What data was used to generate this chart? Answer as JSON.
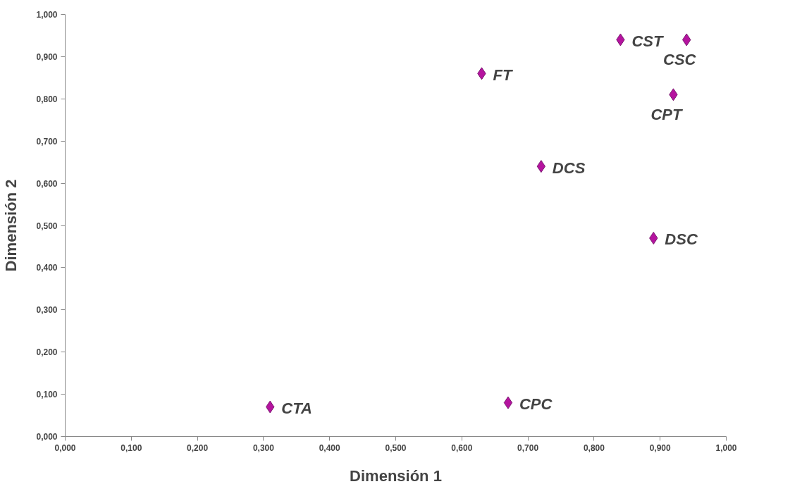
{
  "chart_data": {
    "type": "scatter",
    "xlabel": "Dimensión 1",
    "ylabel": "Dimensión 2",
    "x": [
      0.31,
      0.67,
      0.63,
      0.72,
      0.84,
      0.94,
      0.92,
      0.89
    ],
    "series": [
      {
        "color": "#b5139f",
        "values": [
          0.07,
          0.08,
          0.86,
          0.64,
          0.94,
          0.94,
          0.81,
          0.47
        ]
      }
    ],
    "marker": "diamond",
    "grid": false,
    "xlim": [
      0,
      1
    ],
    "ylim": [
      0,
      1
    ],
    "xticks": [
      {
        "value": 0,
        "label": "0,000"
      },
      {
        "value": 0.1,
        "label": "0,100"
      },
      {
        "value": 0.2,
        "label": "0,200"
      },
      {
        "value": 0.3,
        "label": "0,300"
      },
      {
        "value": 0.4,
        "label": "0,400"
      },
      {
        "value": 0.5,
        "label": "0,500"
      },
      {
        "value": 0.6,
        "label": "0,600"
      },
      {
        "value": 0.7,
        "label": "0,700"
      },
      {
        "value": 0.8,
        "label": "0,800"
      },
      {
        "value": 0.9,
        "label": "0,900"
      },
      {
        "value": 1,
        "label": "1,000"
      }
    ],
    "yticks": [
      {
        "value": 0,
        "label": "0,000"
      },
      {
        "value": 0.1,
        "label": "0,100"
      },
      {
        "value": 0.2,
        "label": "0,200"
      },
      {
        "value": 0.3,
        "label": "0,300"
      },
      {
        "value": 0.4,
        "label": "0,400"
      },
      {
        "value": 0.5,
        "label": "0,500"
      },
      {
        "value": 0.6,
        "label": "0,600"
      },
      {
        "value": 0.7,
        "label": "0,700"
      },
      {
        "value": 0.8,
        "label": "0,800"
      },
      {
        "value": 0.9,
        "label": "0,900"
      },
      {
        "value": 1,
        "label": "1,000"
      }
    ],
    "annotations": [
      {
        "text": "CTA",
        "x": 0.31,
        "y": 0.07
      },
      {
        "text": "CPC",
        "x": 0.67,
        "y": 0.08
      },
      {
        "text": "FT",
        "x": 0.63,
        "y": 0.86
      },
      {
        "text": "DCS",
        "x": 0.72,
        "y": 0.64
      },
      {
        "text": "CST",
        "x": 0.84,
        "y": 0.94
      },
      {
        "text": "CSC",
        "x": 0.94,
        "y": 0.94
      },
      {
        "text": "CPT",
        "x": 0.92,
        "y": 0.81
      },
      {
        "text": "DSC",
        "x": 0.89,
        "y": 0.47
      }
    ]
  }
}
